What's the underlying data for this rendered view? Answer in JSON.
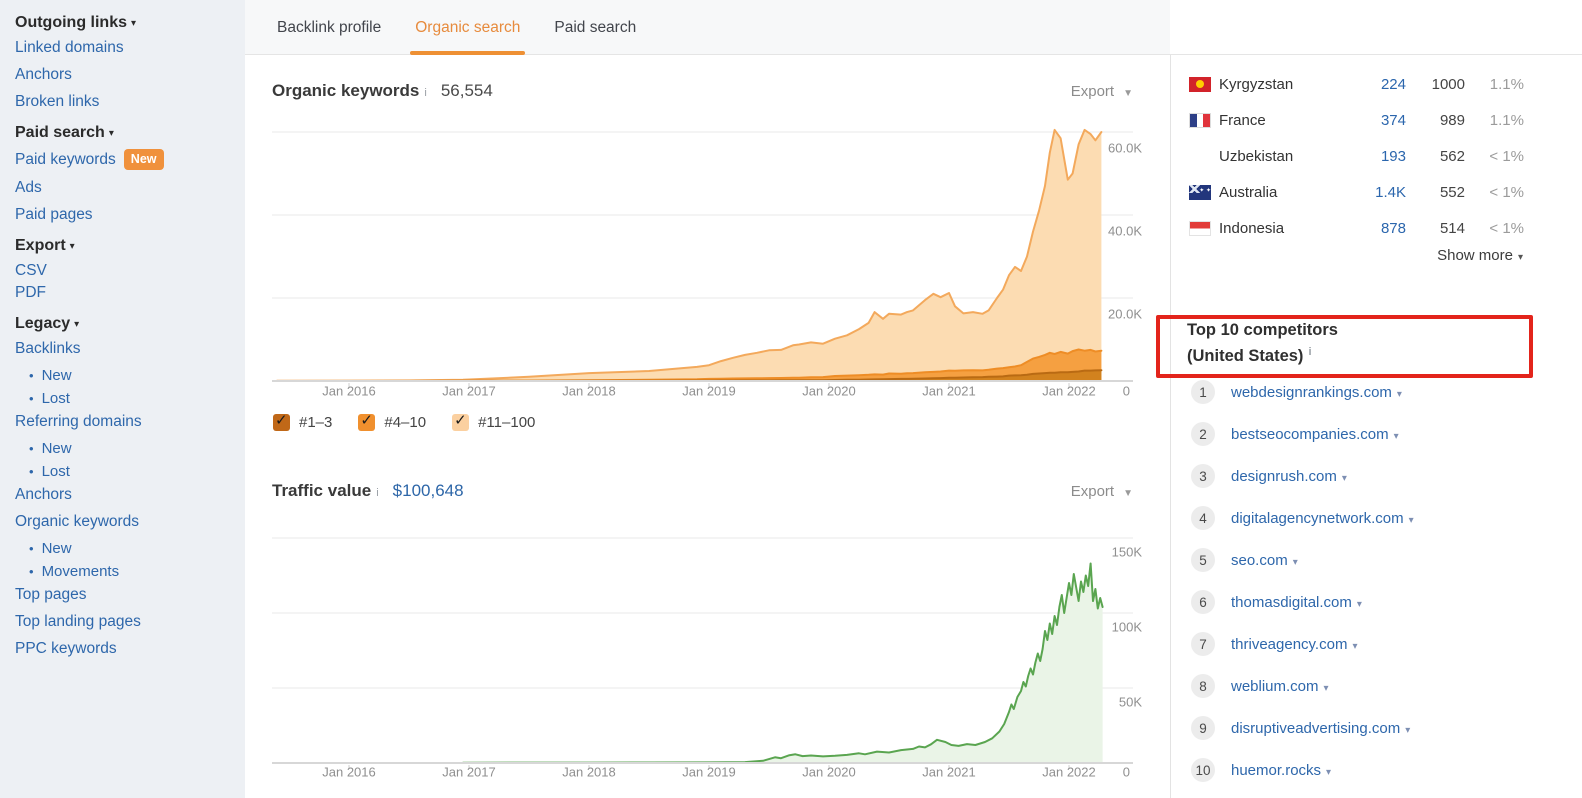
{
  "sidebar": {
    "items": [
      {
        "type": "header",
        "label": "Outgoing links"
      },
      {
        "type": "link",
        "label": "Linked domains"
      },
      {
        "type": "link",
        "label": "Anchors"
      },
      {
        "type": "link",
        "label": "Broken links"
      },
      {
        "type": "header",
        "label": "Paid search"
      },
      {
        "type": "link",
        "label": "Paid keywords",
        "badge": "New"
      },
      {
        "type": "link",
        "label": "Ads"
      },
      {
        "type": "link",
        "label": "Paid pages"
      },
      {
        "type": "header",
        "label": "Export"
      },
      {
        "type": "link",
        "label": "CSV",
        "tight": true
      },
      {
        "type": "link",
        "label": "PDF",
        "tight": true
      },
      {
        "type": "header",
        "label": "Legacy"
      },
      {
        "type": "link",
        "label": "Backlinks"
      },
      {
        "type": "sub",
        "label": "New"
      },
      {
        "type": "sub",
        "label": "Lost"
      },
      {
        "type": "link",
        "label": "Referring domains"
      },
      {
        "type": "sub",
        "label": "New"
      },
      {
        "type": "sub",
        "label": "Lost"
      },
      {
        "type": "link",
        "label": "Anchors"
      },
      {
        "type": "link",
        "label": "Organic keywords"
      },
      {
        "type": "sub",
        "label": "New"
      },
      {
        "type": "sub",
        "label": "Movements"
      },
      {
        "type": "link",
        "label": "Top pages"
      },
      {
        "type": "link",
        "label": "Top landing pages"
      },
      {
        "type": "link",
        "label": "PPC keywords"
      }
    ]
  },
  "tabs": [
    {
      "label": "Backlink profile",
      "active": false
    },
    {
      "label": "Organic search",
      "active": true
    },
    {
      "label": "Paid search",
      "active": false
    }
  ],
  "organic_section": {
    "title": "Organic keywords",
    "info_icon": "i",
    "value": "56,554",
    "export_label": "Export",
    "legend": [
      {
        "label": "#1–3",
        "color": "#c06818",
        "checked": true
      },
      {
        "label": "#4–10",
        "color": "#f0902e",
        "checked": true
      },
      {
        "label": "#11–100",
        "color": "#fbd0a0",
        "checked": true
      }
    ]
  },
  "traffic_section": {
    "title": "Traffic value",
    "info_icon": "i",
    "value": "$100,648",
    "export_label": "Export"
  },
  "chart_data": [
    {
      "type": "area",
      "title": "Organic keywords",
      "stacked": true,
      "values_are_cumulative_stack_tops": true,
      "y_unit": "keywords (thousands)",
      "x_unit": "year (fractional)",
      "ylim_k": [
        0,
        64
      ],
      "grid": "horizontal",
      "legend_position": "bottom",
      "x_ticks": [
        "Jan 2016",
        "Jan 2017",
        "Jan 2018",
        "Jan 2019",
        "Jan 2020",
        "Jan 2021",
        "Jan 2022"
      ],
      "x_tick_years": [
        2016,
        2017,
        2018,
        2019,
        2020,
        2021,
        2022
      ],
      "y_ticks": [
        "60.0K",
        "40.0K",
        "20.0K",
        "0"
      ],
      "y_tick_values_k": [
        60,
        40,
        20,
        0
      ],
      "x": [
        2015.4,
        2016.0,
        2016.5,
        2016.95,
        2017.0,
        2017.5,
        2018.0,
        2018.5,
        2018.9,
        2019.0,
        2019.1,
        2019.2,
        2019.3,
        2019.4,
        2019.5,
        2019.6,
        2019.7,
        2019.75,
        2019.85,
        2019.95,
        2020.05,
        2020.15,
        2020.25,
        2020.33,
        2020.38,
        2020.45,
        2020.5,
        2020.6,
        2020.65,
        2020.7,
        2020.8,
        2020.87,
        2020.93,
        2021.0,
        2021.05,
        2021.12,
        2021.2,
        2021.28,
        2021.33,
        2021.4,
        2021.45,
        2021.5,
        2021.55,
        2021.6,
        2021.65,
        2021.7,
        2021.75,
        2021.8,
        2021.84,
        2021.88,
        2021.93,
        2021.99,
        2022.03,
        2022.08,
        2022.13,
        2022.18,
        2022.22,
        2022.27
      ],
      "series": [
        {
          "name": "#1–3",
          "legend_color": "#c06818",
          "fill_color": "#d2821e",
          "line_color": "#b96a13",
          "values_k": [
            0,
            0,
            0,
            0.02,
            0.02,
            0.03,
            0.05,
            0.07,
            0.1,
            0.1,
            0.12,
            0.13,
            0.14,
            0.15,
            0.15,
            0.16,
            0.18,
            0.18,
            0.2,
            0.2,
            0.25,
            0.3,
            0.32,
            0.35,
            0.38,
            0.4,
            0.45,
            0.5,
            0.5,
            0.55,
            0.6,
            0.65,
            0.7,
            0.8,
            0.8,
            0.85,
            0.9,
            0.95,
            1.0,
            1.05,
            1.1,
            1.3,
            1.35,
            1.4,
            1.5,
            1.7,
            1.8,
            1.9,
            2.0,
            2.0,
            2.1,
            2.1,
            2.2,
            2.3,
            2.5,
            2.5,
            2.55,
            2.6
          ]
        },
        {
          "name": "#4–10",
          "legend_color": "#f0902e",
          "fill_color": "#f5a041",
          "line_color": "#ee8d26",
          "values_k": [
            0,
            0,
            0,
            0.05,
            0.05,
            0.1,
            0.2,
            0.3,
            0.4,
            0.5,
            0.55,
            0.6,
            0.62,
            0.65,
            0.7,
            0.72,
            0.78,
            0.8,
            0.9,
            0.95,
            1.2,
            1.3,
            1.4,
            1.5,
            1.6,
            1.55,
            1.8,
            1.75,
            1.85,
            1.9,
            2.1,
            2.2,
            2.3,
            2.5,
            2.45,
            2.55,
            2.6,
            2.55,
            2.7,
            3.0,
            3.1,
            3.3,
            3.5,
            3.8,
            4.6,
            5.4,
            5.8,
            6.3,
            6.8,
            6.5,
            7.0,
            6.6,
            7.2,
            7.6,
            7.3,
            7.5,
            7.1,
            7.3
          ]
        },
        {
          "name": "#11–100",
          "legend_color": "#fbd0a0",
          "fill_color": "#fcdcb2",
          "line_color": "#f3a95c",
          "values_k": [
            0.05,
            0.1,
            0.15,
            0.3,
            0.35,
            1.0,
            1.9,
            2.4,
            3.4,
            3.8,
            4.8,
            5.6,
            6.3,
            6.8,
            7.4,
            7.5,
            8.6,
            8.8,
            9.3,
            9.0,
            10.2,
            11.0,
            12.5,
            14.0,
            16.6,
            15.0,
            16.2,
            16.0,
            16.6,
            17.0,
            19.5,
            21.0,
            20.2,
            21.2,
            18.0,
            16.3,
            16.6,
            16.2,
            17.0,
            20.0,
            22.0,
            25.5,
            27.5,
            26.5,
            30.0,
            36.0,
            41.0,
            47.0,
            55.0,
            60.5,
            58.5,
            48.5,
            50.0,
            57.0,
            60.5,
            59.5,
            58.0,
            60.0
          ]
        }
      ]
    },
    {
      "type": "line",
      "title": "Traffic value",
      "stacked": false,
      "y_unit": "USD (thousands)",
      "x_unit": "year (fractional)",
      "ylim_k": [
        0,
        155
      ],
      "grid": "horizontal",
      "x_ticks": [
        "Jan 2016",
        "Jan 2017",
        "Jan 2018",
        "Jan 2019",
        "Jan 2020",
        "Jan 2021",
        "Jan 2022"
      ],
      "x_tick_years": [
        2016,
        2017,
        2018,
        2019,
        2020,
        2021,
        2022
      ],
      "y_ticks": [
        "150K",
        "100K",
        "50K",
        "0"
      ],
      "y_tick_values_k": [
        150,
        100,
        50,
        0
      ],
      "x": [
        2016.95,
        2017.5,
        2018.0,
        2018.5,
        2019.0,
        2019.3,
        2019.45,
        2019.55,
        2019.6,
        2019.67,
        2019.72,
        2019.78,
        2019.85,
        2019.95,
        2020.05,
        2020.15,
        2020.25,
        2020.3,
        2020.4,
        2020.5,
        2020.6,
        2020.7,
        2020.75,
        2020.8,
        2020.85,
        2020.9,
        2020.97,
        2021.02,
        2021.08,
        2021.15,
        2021.22,
        2021.3,
        2021.36,
        2021.42,
        2021.46,
        2021.5,
        2021.52,
        2021.54,
        2021.57,
        2021.6,
        2021.62,
        2021.64,
        2021.66,
        2021.68,
        2021.7,
        2021.72,
        2021.74,
        2021.76,
        2021.78,
        2021.8,
        2021.82,
        2021.84,
        2021.86,
        2021.88,
        2021.9,
        2021.92,
        2021.94,
        2021.96,
        2021.98,
        2022.0,
        2022.02,
        2022.04,
        2022.06,
        2022.08,
        2022.1,
        2022.12,
        2022.14,
        2022.16,
        2022.18,
        2022.2,
        2022.22,
        2022.24,
        2022.26,
        2022.28
      ],
      "series": [
        {
          "name": "Traffic value",
          "legend_color": "#5aa550",
          "fill_color": "#eaf4e7",
          "line_color": "#5aa550",
          "values_k": [
            0.2,
            0.3,
            0.3,
            0.35,
            0.4,
            0.6,
            1.5,
            3.8,
            3.2,
            5.2,
            5.8,
            4.6,
            5.0,
            4.4,
            4.8,
            5.4,
            6.5,
            5.8,
            7.6,
            7.0,
            8.6,
            9.4,
            11.0,
            10.4,
            12.5,
            15.5,
            14.0,
            12.0,
            11.4,
            12.6,
            12.0,
            14.0,
            16.5,
            21.0,
            26.0,
            34.0,
            39.0,
            36.0,
            44.0,
            48.0,
            54.0,
            51.0,
            58.0,
            63.0,
            59.0,
            67.0,
            73.0,
            68.0,
            76.0,
            88.0,
            82.0,
            93.0,
            86.0,
            98.0,
            92.0,
            104.0,
            112.0,
            100.0,
            110.0,
            120.0,
            112.0,
            126.0,
            117.0,
            108.0,
            121.0,
            114.0,
            125.0,
            118.0,
            133.0,
            108.0,
            116.0,
            103.0,
            110.0,
            104.0
          ]
        }
      ]
    }
  ],
  "countries": {
    "rows": [
      {
        "flag": "kg",
        "name": "Kyrgyzstan",
        "keywords": "224",
        "traffic": "1000",
        "share": "1.1%"
      },
      {
        "flag": "fr",
        "name": "France",
        "keywords": "374",
        "traffic": "989",
        "share": "1.1%"
      },
      {
        "flag": null,
        "name": "Uzbekistan",
        "keywords": "193",
        "traffic": "562",
        "share": "< 1%"
      },
      {
        "flag": "au",
        "name": "Australia",
        "keywords": "1.4K",
        "traffic": "552",
        "share": "< 1%"
      },
      {
        "flag": "id",
        "name": "Indonesia",
        "keywords": "878",
        "traffic": "514",
        "share": "< 1%"
      }
    ],
    "show_more": "Show more"
  },
  "competitors": {
    "title_line1": "Top 10 competitors",
    "title_line2": "(United States)",
    "info_icon": "i",
    "items": [
      {
        "rank": "1",
        "domain": "webdesignrankings.com"
      },
      {
        "rank": "2",
        "domain": "bestseocompanies.com"
      },
      {
        "rank": "3",
        "domain": "designrush.com"
      },
      {
        "rank": "4",
        "domain": "digitalagencynetwork.com"
      },
      {
        "rank": "5",
        "domain": "seo.com"
      },
      {
        "rank": "6",
        "domain": "thomasdigital.com"
      },
      {
        "rank": "7",
        "domain": "thriveagency.com"
      },
      {
        "rank": "8",
        "domain": "weblium.com"
      },
      {
        "rank": "9",
        "domain": "disruptiveadvertising.com"
      },
      {
        "rank": "10",
        "domain": "huemor.rocks"
      }
    ]
  }
}
